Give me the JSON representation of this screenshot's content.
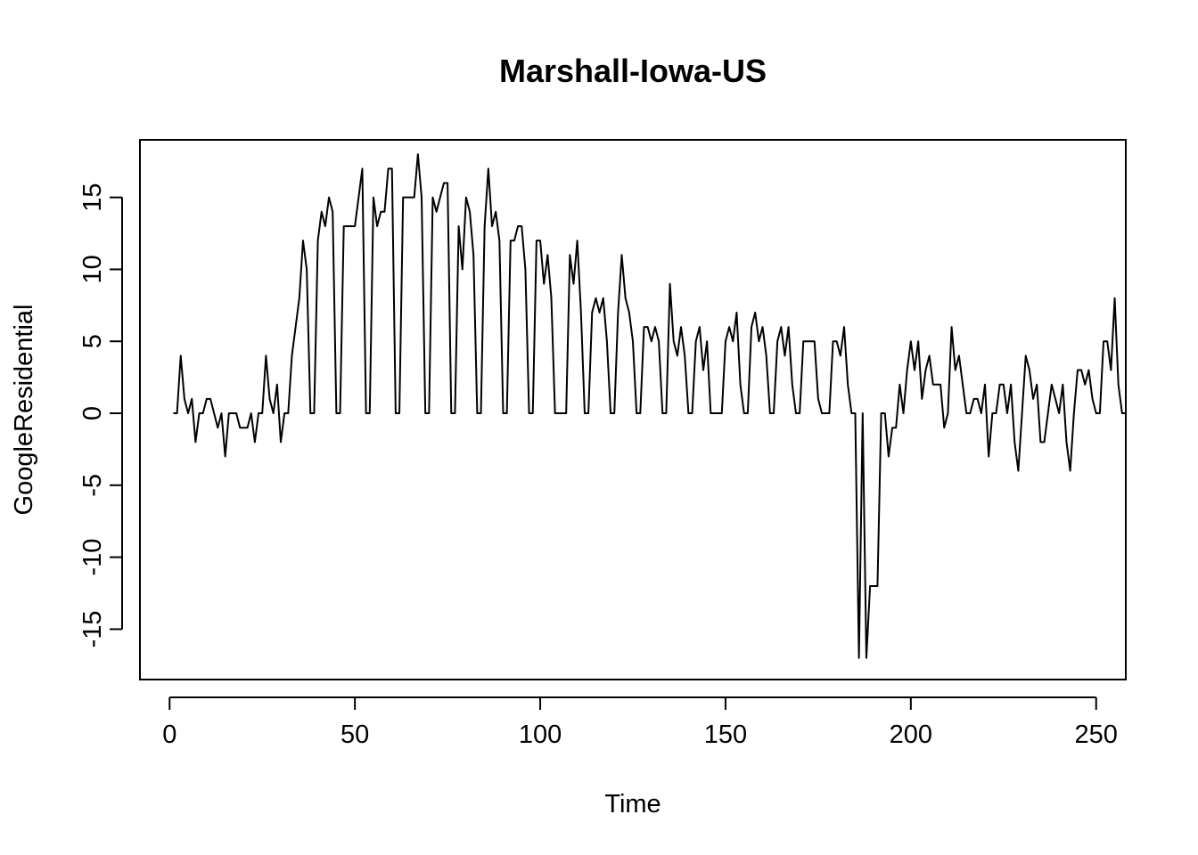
{
  "chart_data": {
    "type": "line",
    "title": "Marshall-Iowa-US",
    "xlabel": "Time",
    "ylabel": "GoogleResidential",
    "xlim": [
      -8,
      258
    ],
    "ylim": [
      -18.5,
      19
    ],
    "xticks": [
      0,
      50,
      100,
      150,
      200,
      250
    ],
    "yticks": [
      -15,
      -10,
      -5,
      0,
      5,
      10,
      15
    ],
    "grid": false,
    "series": [
      {
        "x_start": 1,
        "values": [
          0,
          0,
          4,
          1,
          0,
          1,
          -2,
          0,
          0,
          1,
          1,
          0,
          -1,
          0,
          -3,
          0,
          0,
          0,
          -1,
          -1,
          -1,
          0,
          -2,
          0,
          0,
          4,
          1,
          0,
          2,
          -2,
          0,
          0,
          4,
          6,
          8,
          12,
          10,
          0,
          0,
          12,
          14,
          13,
          15,
          14,
          0,
          0,
          13,
          13,
          13,
          13,
          15,
          17,
          0,
          0,
          15,
          13,
          14,
          14,
          17,
          17,
          0,
          0,
          15,
          15,
          15,
          15,
          18,
          15,
          0,
          0,
          15,
          14,
          15,
          16,
          16,
          0,
          0,
          13,
          10,
          15,
          14,
          11,
          0,
          0,
          13,
          17,
          13,
          14,
          12,
          0,
          0,
          12,
          12,
          13,
          13,
          10,
          0,
          0,
          12,
          12,
          9,
          11,
          8,
          0,
          0,
          0,
          0,
          11,
          9,
          12,
          7,
          0,
          0,
          7,
          8,
          7,
          8,
          5,
          0,
          0,
          7,
          11,
          8,
          7,
          5,
          0,
          0,
          6,
          6,
          5,
          6,
          5,
          0,
          0,
          9,
          5,
          4,
          6,
          4,
          0,
          0,
          5,
          6,
          3,
          5,
          0,
          0,
          0,
          0,
          5,
          6,
          5,
          7,
          2,
          0,
          0,
          6,
          7,
          5,
          6,
          4,
          0,
          0,
          5,
          6,
          4,
          6,
          2,
          0,
          0,
          5,
          5,
          5,
          5,
          1,
          0,
          0,
          0,
          5,
          5,
          4,
          6,
          2,
          0,
          0,
          -17,
          0,
          -17,
          -12,
          -12,
          -12,
          0,
          0,
          -3,
          -1,
          -1,
          2,
          0,
          3,
          5,
          3,
          5,
          1,
          3,
          4,
          2,
          2,
          2,
          -1,
          0,
          6,
          3,
          4,
          2,
          0,
          0,
          1,
          1,
          0,
          2,
          -3,
          0,
          0,
          2,
          2,
          0,
          2,
          -2,
          -4,
          0,
          4,
          3,
          1,
          2,
          -2,
          -2,
          0,
          2,
          1,
          0,
          2,
          -2,
          -4,
          0,
          3,
          3,
          2,
          3,
          1,
          0,
          0,
          5,
          5,
          3,
          8,
          2,
          0,
          0
        ]
      }
    ]
  }
}
